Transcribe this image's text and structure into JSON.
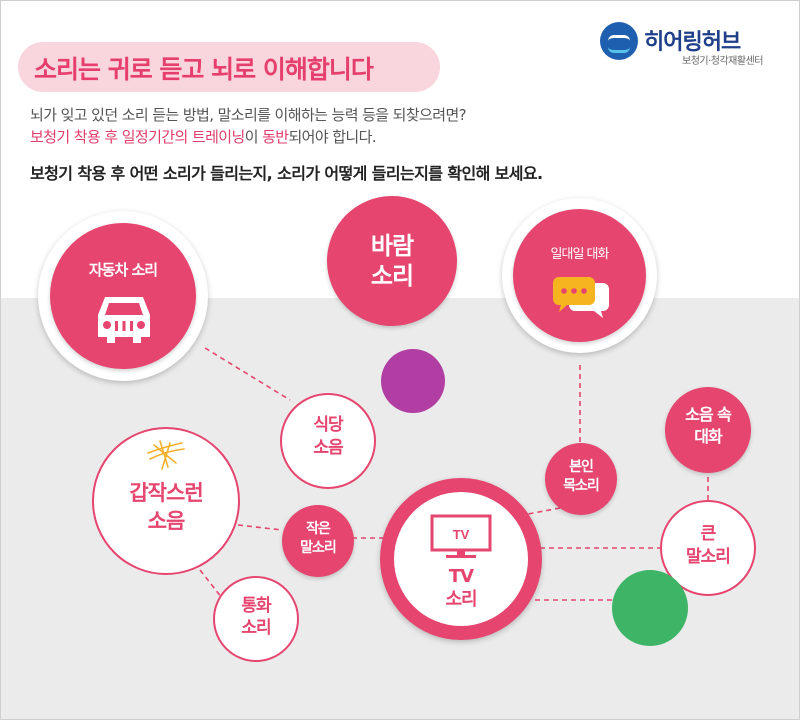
{
  "header": {
    "title": "소리는 귀로 듣고 뇌로 이해합니다",
    "brand": {
      "name": "히어링허브",
      "subtitle": "보청기·청각재활센터"
    }
  },
  "intro": {
    "line1": "뇌가 잊고 있던 소리 듣는 방법, 말소리를 이해하는 능력 등을 되찾으려면?",
    "line2_highlight_a": "보청기 착용 후 일정기간의 트레이닝",
    "line2_plain_a": "이 ",
    "line2_highlight_b": "동반",
    "line2_plain_b": "되어야 합니다.",
    "line3": "보청기 착용 후 어떤 소리가 들리는지, 소리가 어떻게 들리는지를 확인해 보세요."
  },
  "bubbles": {
    "car_sound": "자동차 소리",
    "wind_sound_1": "바람",
    "wind_sound_2": "소리",
    "daily_conversation": "일대일 대화",
    "restaurant_noise_1": "식당",
    "restaurant_noise_2": "소음",
    "sudden_noise_1": "갑작스런",
    "sudden_noise_2": "소음",
    "small_voice_1": "작은",
    "small_voice_2": "말소리",
    "phone_call_1": "통화",
    "phone_call_2": "소리",
    "tv_icon_text": "TV",
    "tv_sound_1": "TV",
    "tv_sound_2": "소리",
    "own_voice_1": "본인",
    "own_voice_2": "목소리",
    "noise_conversation_1": "소음 속",
    "noise_conversation_2": "대화",
    "loud_voice_1": "큰",
    "loud_voice_2": "말소리"
  },
  "colors": {
    "accent_pink": "#e5456f",
    "title_pink": "#e63e6d",
    "banner_pink": "#f9d6dd",
    "brand_blue": "#1f5fb0",
    "purple": "#b13fa3",
    "green": "#3db466",
    "yellow": "#f6b51e",
    "lower_gray": "#ebebeb"
  },
  "icons": [
    "hearinghub-logo-icon",
    "car-icon",
    "speech-bubbles-icon",
    "burst-icon",
    "tv-icon"
  ]
}
